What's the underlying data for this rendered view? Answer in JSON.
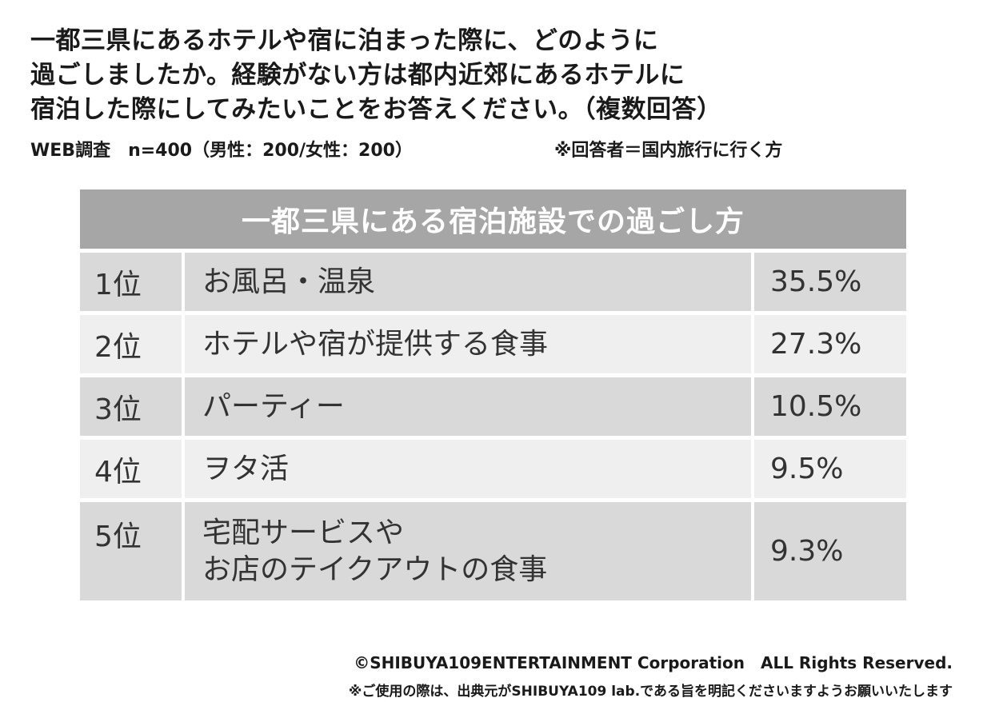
{
  "question": {
    "lines": [
      "一都三県にあるホテルや宿に泊まった際に、どのように",
      "過ごしましたか。経験がない方は都内近郊にあるホテルに",
      "宿泊した際にしてみたいことをお答えください。（複数回答）"
    ]
  },
  "survey": {
    "method": "WEB調査　n=400（男性：200/女性：200）",
    "respondents": "※回答者＝国内旅行に行く方"
  },
  "chart_data": {
    "type": "table",
    "title": "一都三県にある宿泊施設での過ごし方",
    "columns": [
      "rank",
      "item",
      "percent"
    ],
    "rows": [
      {
        "rank": "1位",
        "item": "お風呂・温泉",
        "percent": "35.5%",
        "value": 35.5
      },
      {
        "rank": "2位",
        "item": "ホテルや宿が提供する食事",
        "percent": "27.3%",
        "value": 27.3
      },
      {
        "rank": "3位",
        "item": "パーティー",
        "percent": "10.5%",
        "value": 10.5
      },
      {
        "rank": "4位",
        "item": "ヲタ活",
        "percent": "9.5%",
        "value": 9.5
      },
      {
        "rank": "5位",
        "item": "宅配サービスや\nお店のテイクアウトの食事",
        "percent": "9.3%",
        "value": 9.3
      }
    ]
  },
  "footer": {
    "copyright": "©SHIBUYA109ENTERTAINMENT Corporation　ALL Rights Reserved.",
    "notice": "※ご使用の際は、出典元がSHIBUYA109 lab.である旨を明記くださいますようお願いいたします"
  },
  "colors": {
    "header_bg": "#a6a6a6",
    "row_dark": "#d9d9d9",
    "row_light": "#efefef"
  }
}
